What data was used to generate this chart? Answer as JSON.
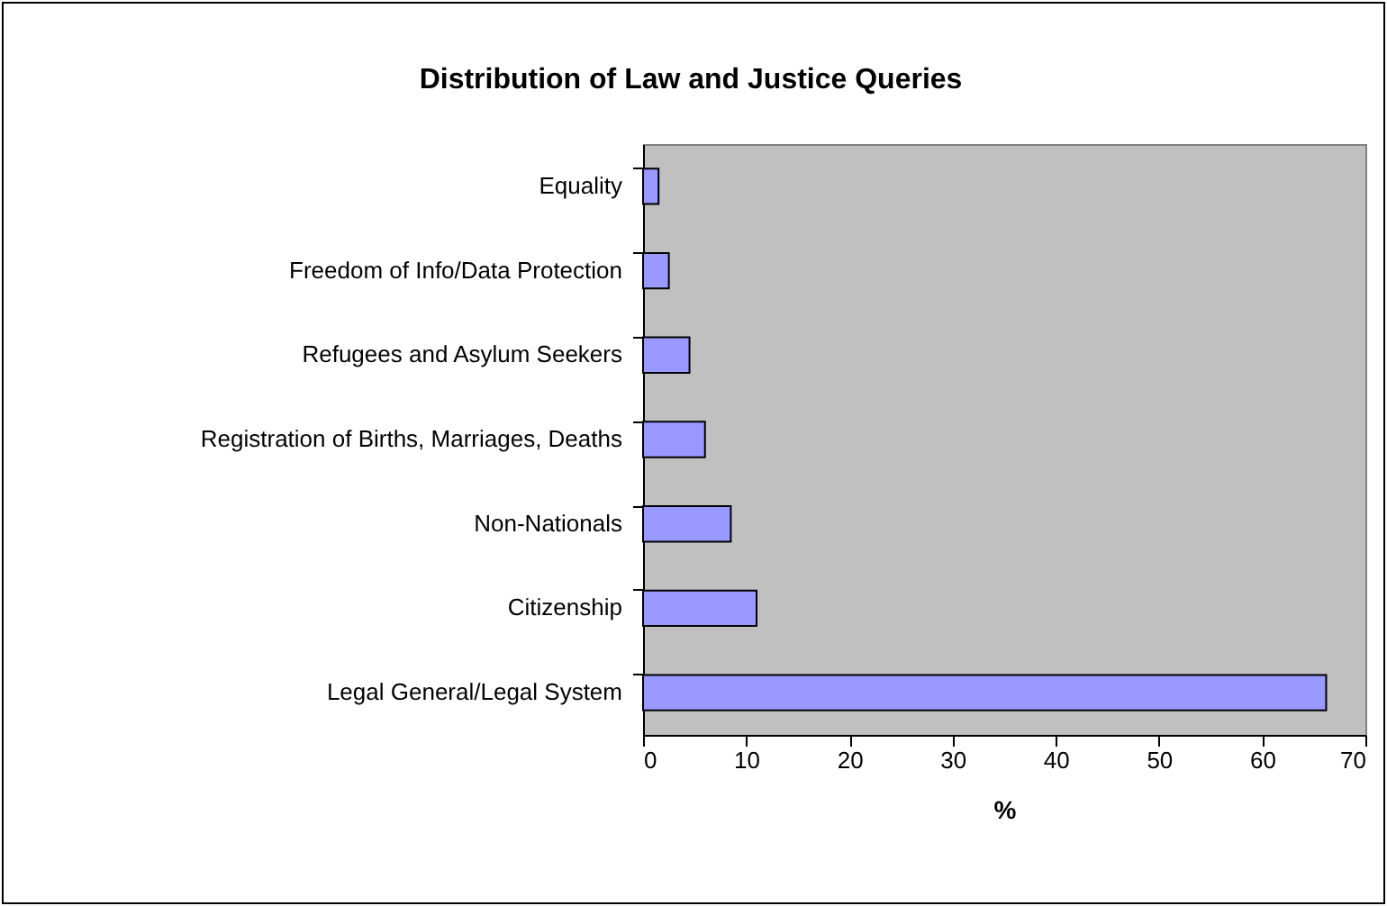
{
  "chart_data": {
    "type": "bar",
    "orientation": "horizontal",
    "title": "Distribution of Law and Justice Queries",
    "xlabel": "%",
    "categories": [
      "Equality",
      "Freedom of Info/Data Protection",
      "Refugees and Asylum Seekers",
      "Registration of Births, Marriages, Deaths",
      "Non-Nationals",
      "Citizenship",
      "Legal General/Legal System"
    ],
    "values": [
      1.5,
      2.5,
      4.5,
      6,
      8.5,
      11,
      66.2
    ],
    "color": "#9999ff",
    "xlim": [
      0,
      70
    ],
    "xticks": [
      0,
      10,
      20,
      30,
      40,
      50,
      60,
      70
    ],
    "grid": false
  }
}
